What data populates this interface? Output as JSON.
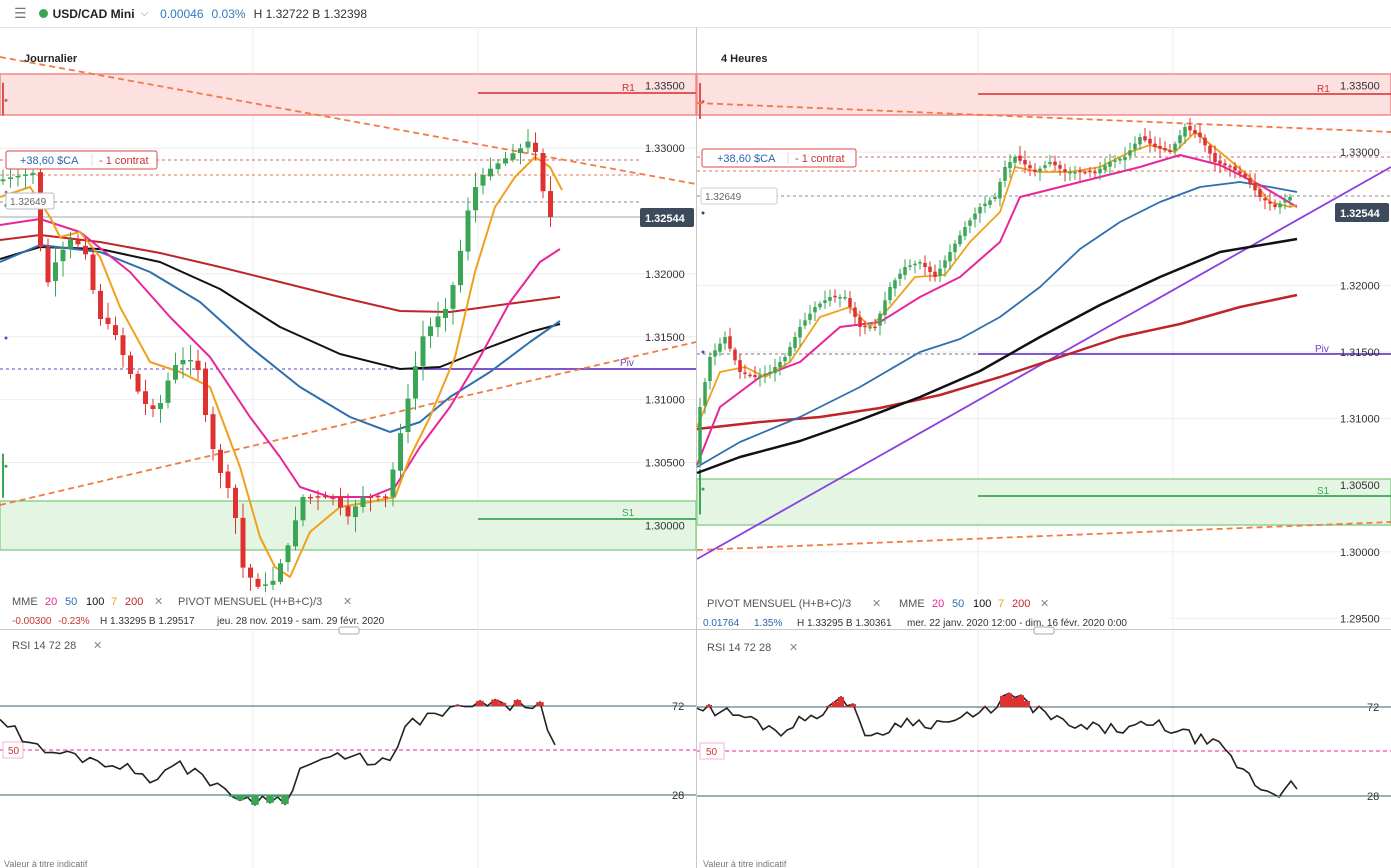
{
  "toolbar": {
    "menu_icon": "hamburger-icon",
    "symbol": "USD/CAD Mini",
    "change": "0.00046",
    "change_pct": "0.03%",
    "high_low": "H 1.32722 B 1.32398"
  },
  "colors": {
    "ema20": "#e8259a",
    "ema50": "#2d6fb0",
    "ema100": "#111111",
    "ema7": "#f0a11c",
    "ema200": "#c0242b",
    "up": "#3aa655",
    "down": "#e03131",
    "pivot": "#6a3fc8",
    "r1": "#d9534f",
    "s1": "#3aa655",
    "rsi_over": "#e03131",
    "rsi_under": "#3aa655"
  },
  "footnote": "Valeur à titre indicatif",
  "panels": {
    "left": {
      "title": "Journalier",
      "position_pl": "+38,60 $CA",
      "position_size": "- 1 contrat",
      "entry_label": "1.32649",
      "last_price": "1.32544",
      "r1_label": "R1",
      "pivot_label": "Piv",
      "s1_label": "S1",
      "legend_mme": "MME",
      "legend_periods": [
        "20",
        "50",
        "100",
        "7",
        "200"
      ],
      "legend_pivot": "PIVOT MENSUEL (H+B+C)/3",
      "info_change": "-0.00300",
      "info_pct": "-0.23%",
      "info_hl": "H 1.33295 B 1.29517",
      "info_range": "jeu. 28 nov. 2019 - sam. 29 févr. 2020",
      "rsi_label": "RSI 14 72 28",
      "rsi_ticks": [
        "72",
        "28"
      ],
      "rsi_mid": "50"
    },
    "right": {
      "title": "4 Heures",
      "position_pl": "+38,60 $CA",
      "position_size": "- 1 contrat",
      "entry_label": "1.32649",
      "last_price": "1.32544",
      "r1_label": "R1",
      "pivot_label": "Piv",
      "s1_label": "S1",
      "legend_mme": "MME",
      "legend_periods": [
        "20",
        "50",
        "100",
        "7",
        "200"
      ],
      "legend_pivot": "PIVOT MENSUEL (H+B+C)/3",
      "info_change": "0.01764",
      "info_pct": "1.35%",
      "info_hl": "H 1.33295 B 1.30361",
      "info_range": "mer. 22 janv. 2020 12:00 - dim. 16 févr. 2020 0:00",
      "rsi_label": "RSI 14 72 28",
      "rsi_ticks": [
        "72",
        "28"
      ],
      "rsi_mid": "50"
    }
  },
  "chart_data": [
    {
      "type": "candlestick",
      "title": "Journalier",
      "ylim": [
        1.2955,
        1.3355
      ],
      "y_ticks": [
        "1.33500",
        "1.33000",
        "1.32000",
        "1.31500",
        "1.31000",
        "1.30500",
        "1.30000"
      ],
      "levels": {
        "R1": 1.3338,
        "Pivot": 1.3149,
        "S1": 1.3047,
        "entry": 1.32649,
        "last": 1.32544
      },
      "zones": {
        "resistance": [
          1.3326,
          1.3352
        ],
        "support": [
          1.3022,
          1.3057
        ]
      },
      "legend": [
        "MME 20",
        "MME 50",
        "MME 100",
        "MME 7",
        "MME 200",
        "PIVOT MENSUEL (H+B+C)/3"
      ]
    },
    {
      "type": "candlestick",
      "title": "4 Heures",
      "ylim": [
        1.2945,
        1.3355
      ],
      "y_ticks": [
        "1.33500",
        "1.33000",
        "1.32000",
        "1.31500",
        "1.31000",
        "1.30500",
        "1.30000",
        "1.29500"
      ],
      "levels": {
        "R1": 1.3338,
        "Pivot": 1.315,
        "S1": 1.3047,
        "entry": 1.32649,
        "last": 1.32544
      },
      "zones": {
        "resistance": [
          1.3325,
          1.3352
        ],
        "support": [
          1.3028,
          1.3062
        ]
      },
      "legend": [
        "PIVOT MENSUEL (H+B+C)/3",
        "MME 20",
        "MME 50",
        "MME 100",
        "MME 7",
        "MME 200"
      ]
    },
    {
      "type": "line",
      "title": "RSI 14 72 28",
      "ylim": [
        0,
        100
      ],
      "levels": [
        72,
        50,
        28
      ]
    }
  ]
}
